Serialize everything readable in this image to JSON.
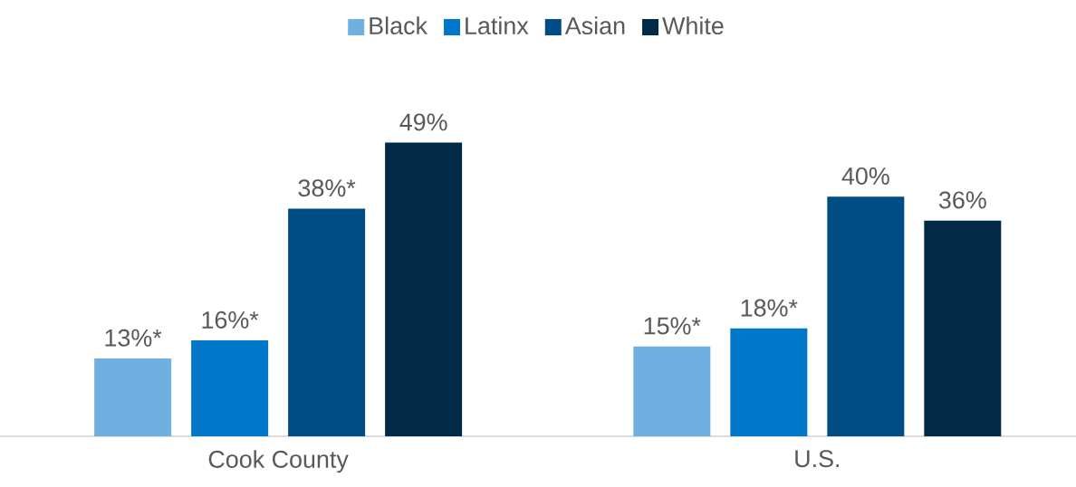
{
  "chart_data": {
    "type": "bar",
    "categories": [
      "Cook County",
      "U.S."
    ],
    "series": [
      {
        "name": "Black",
        "color": "#6fb0e0",
        "values": [
          13,
          15
        ],
        "value_labels": [
          "13%*",
          "15%*"
        ]
      },
      {
        "name": "Latinx",
        "color": "#0077c8",
        "values": [
          16,
          18
        ],
        "value_labels": [
          "16%*",
          "18%*"
        ]
      },
      {
        "name": "Asian",
        "color": "#004c84",
        "values": [
          38,
          40
        ],
        "value_labels": [
          "38%*",
          "40%"
        ]
      },
      {
        "name": "White",
        "color": "#002a45",
        "values": [
          49,
          36
        ],
        "value_labels": [
          "49%",
          "36%"
        ]
      }
    ],
    "legend": "top"
  }
}
